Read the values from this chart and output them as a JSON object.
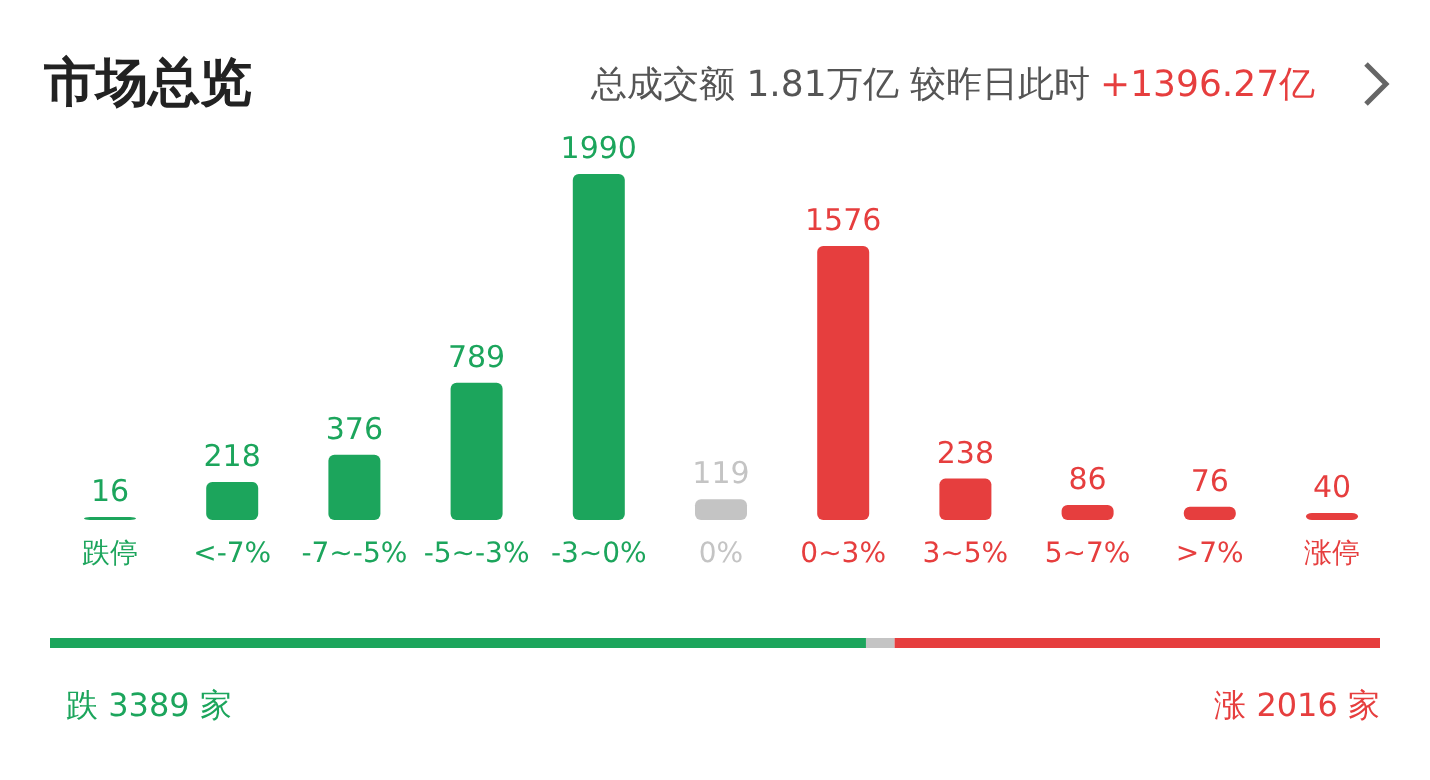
{
  "chart_data": {
    "type": "bar",
    "title": "市场总览",
    "subtitle": "总成交额 1.81万亿 较昨日此时",
    "data_labels": true,
    "categories": [
      "跌停",
      "<-7%",
      "-7~-5%",
      "-5~-3%",
      "-3~0%",
      "0%",
      "0~3%",
      "3~5%",
      "5~7%",
      ">7%",
      "涨停"
    ],
    "values": [
      16,
      218,
      376,
      789,
      1990,
      119,
      1576,
      238,
      86,
      76,
      40
    ],
    "colors": [
      "#1ca55c",
      "#1ca55c",
      "#1ca55c",
      "#1ca55c",
      "#1ca55c",
      "#c4c4c4",
      "#e63e3e",
      "#e63e3e",
      "#e63e3e",
      "#e63e3e",
      "#e63e3e"
    ],
    "annotations": [
      "+1396.27亿",
      "跌 3389 家",
      "涨 2016 家"
    ]
  }
}
